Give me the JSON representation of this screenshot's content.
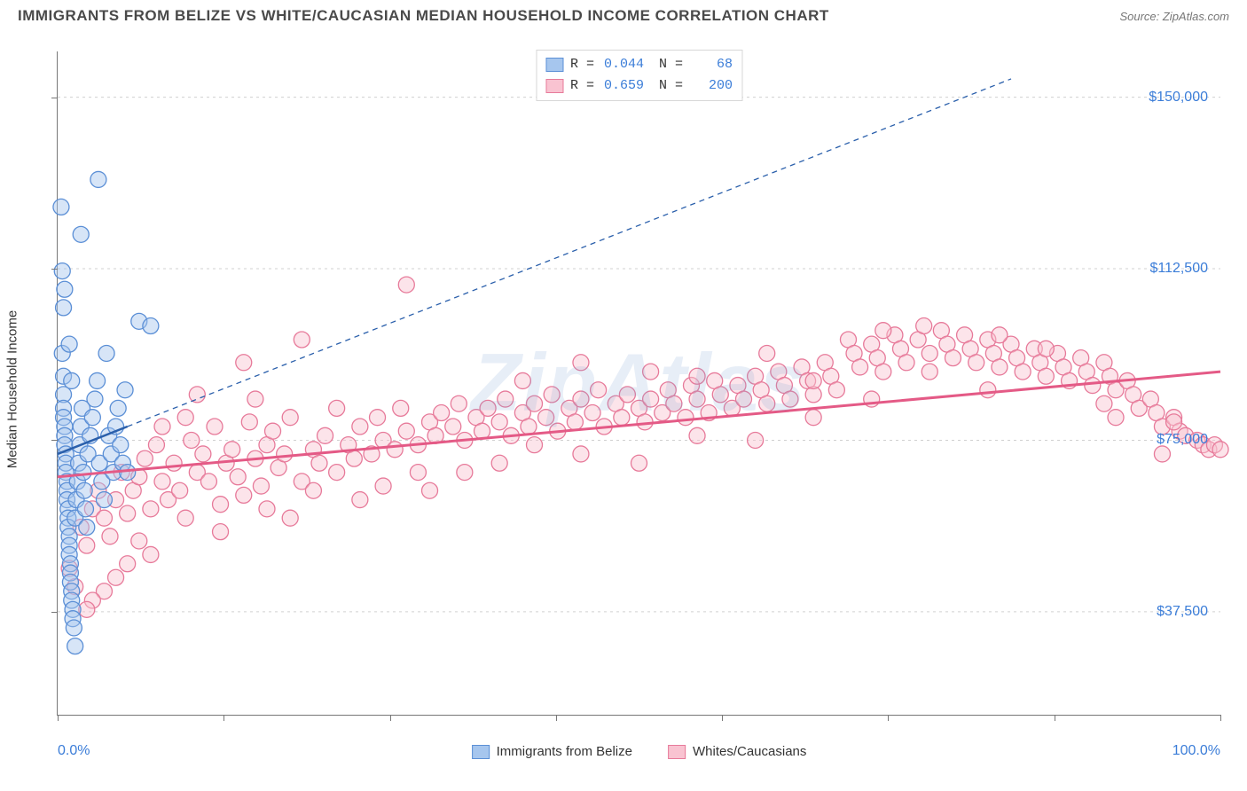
{
  "title": "IMMIGRANTS FROM BELIZE VS WHITE/CAUCASIAN MEDIAN HOUSEHOLD INCOME CORRELATION CHART",
  "source_label": "Source: ZipAtlas.com",
  "watermark": "ZipAtlas",
  "axes": {
    "ylabel": "Median Household Income",
    "y_ticks": [
      {
        "v": 37500,
        "label": "$37,500"
      },
      {
        "v": 75000,
        "label": "$75,000"
      },
      {
        "v": 112500,
        "label": "$112,500"
      },
      {
        "v": 150000,
        "label": "$150,000"
      }
    ],
    "ylim": [
      15000,
      160000
    ],
    "xlim": [
      0,
      100
    ],
    "x_tick_positions": [
      0,
      14.3,
      28.6,
      42.9,
      57.1,
      71.4,
      85.7,
      100
    ],
    "x_tick_labels": [
      {
        "v": 0,
        "label": "0.0%"
      },
      {
        "v": 100,
        "label": "100.0%"
      }
    ]
  },
  "colors": {
    "blue_fill": "#a6c6ee",
    "blue_stroke": "#5b8fd6",
    "blue_line": "#2a5fab",
    "pink_fill": "#f9c3d1",
    "pink_stroke": "#e77a9a",
    "pink_line": "#e45a86",
    "grid": "#d0d0d0",
    "axis": "#777777",
    "tick_label": "#3b7dd8",
    "text": "#333333",
    "bg": "#ffffff"
  },
  "marker": {
    "radius": 9,
    "fill_opacity": 0.45,
    "stroke_width": 1.3
  },
  "legend_top": [
    {
      "swatch": "blue",
      "R": "0.044",
      "N": "68"
    },
    {
      "swatch": "pink",
      "R": "0.659",
      "N": "200"
    }
  ],
  "legend_bottom": [
    {
      "swatch": "blue",
      "label": "Immigrants from Belize"
    },
    {
      "swatch": "pink",
      "label": "Whites/Caucasians"
    }
  ],
  "series": {
    "blue": {
      "trend": {
        "x1": 0,
        "y1": 72000,
        "x2": 6,
        "y2": 78000
      },
      "extrap": {
        "x1": 6,
        "y1": 78000,
        "x2": 82,
        "y2": 154000
      },
      "extrap_dash": "6,5",
      "points": [
        [
          0.3,
          126000
        ],
        [
          0.4,
          94000
        ],
        [
          0.5,
          89000
        ],
        [
          0.5,
          85000
        ],
        [
          0.5,
          82000
        ],
        [
          0.5,
          80000
        ],
        [
          0.6,
          78000
        ],
        [
          0.6,
          76000
        ],
        [
          0.6,
          74000
        ],
        [
          0.7,
          72000
        ],
        [
          0.7,
          70000
        ],
        [
          0.7,
          68000
        ],
        [
          0.8,
          66000
        ],
        [
          0.8,
          64000
        ],
        [
          0.8,
          62000
        ],
        [
          0.9,
          60000
        ],
        [
          0.9,
          58000
        ],
        [
          0.9,
          56000
        ],
        [
          1.0,
          54000
        ],
        [
          1.0,
          52000
        ],
        [
          1.0,
          50000
        ],
        [
          1.1,
          48000
        ],
        [
          1.1,
          46000
        ],
        [
          1.1,
          44000
        ],
        [
          1.2,
          42000
        ],
        [
          1.2,
          40000
        ],
        [
          1.3,
          38000
        ],
        [
          1.3,
          36000
        ],
        [
          1.4,
          34000
        ],
        [
          1.5,
          30000
        ],
        [
          1.5,
          58000
        ],
        [
          1.6,
          62000
        ],
        [
          1.7,
          66000
        ],
        [
          1.8,
          70000
        ],
        [
          1.9,
          74000
        ],
        [
          2.0,
          78000
        ],
        [
          2.1,
          82000
        ],
        [
          2.2,
          68000
        ],
        [
          2.3,
          64000
        ],
        [
          2.4,
          60000
        ],
        [
          2.5,
          56000
        ],
        [
          2.6,
          72000
        ],
        [
          2.8,
          76000
        ],
        [
          3.0,
          80000
        ],
        [
          3.2,
          84000
        ],
        [
          3.4,
          88000
        ],
        [
          3.6,
          70000
        ],
        [
          3.8,
          66000
        ],
        [
          4.0,
          62000
        ],
        [
          4.2,
          94000
        ],
        [
          4.4,
          76000
        ],
        [
          4.6,
          72000
        ],
        [
          4.8,
          68000
        ],
        [
          5.0,
          78000
        ],
        [
          5.2,
          82000
        ],
        [
          5.4,
          74000
        ],
        [
          5.6,
          70000
        ],
        [
          5.8,
          86000
        ],
        [
          6.0,
          68000
        ],
        [
          2.0,
          120000
        ],
        [
          3.5,
          132000
        ],
        [
          7.0,
          101000
        ],
        [
          8.0,
          100000
        ],
        [
          1.0,
          96000
        ],
        [
          1.2,
          88000
        ],
        [
          0.5,
          104000
        ],
        [
          0.6,
          108000
        ],
        [
          0.4,
          112000
        ]
      ]
    },
    "pink": {
      "trend": {
        "x1": 0,
        "y1": 67000,
        "x2": 100,
        "y2": 90000
      },
      "points": [
        [
          1,
          47000
        ],
        [
          1.5,
          43000
        ],
        [
          2,
          56000
        ],
        [
          2.5,
          52000
        ],
        [
          3,
          60000
        ],
        [
          3.5,
          64000
        ],
        [
          4,
          58000
        ],
        [
          4.5,
          54000
        ],
        [
          5,
          62000
        ],
        [
          5,
          45000
        ],
        [
          5.5,
          68000
        ],
        [
          6,
          59000
        ],
        [
          6.5,
          64000
        ],
        [
          7,
          67000
        ],
        [
          7,
          53000
        ],
        [
          7.5,
          71000
        ],
        [
          8,
          60000
        ],
        [
          8.5,
          74000
        ],
        [
          9,
          66000
        ],
        [
          9.5,
          62000
        ],
        [
          10,
          70000
        ],
        [
          10.5,
          64000
        ],
        [
          11,
          58000
        ],
        [
          11.5,
          75000
        ],
        [
          12,
          68000
        ],
        [
          12.5,
          72000
        ],
        [
          13,
          66000
        ],
        [
          13.5,
          78000
        ],
        [
          14,
          61000
        ],
        [
          14.5,
          70000
        ],
        [
          15,
          73000
        ],
        [
          15.5,
          67000
        ],
        [
          16,
          63000
        ],
        [
          16.5,
          79000
        ],
        [
          17,
          71000
        ],
        [
          17.5,
          65000
        ],
        [
          18,
          74000
        ],
        [
          18.5,
          77000
        ],
        [
          19,
          69000
        ],
        [
          19.5,
          72000
        ],
        [
          20,
          80000
        ],
        [
          21,
          97000
        ],
        [
          21,
          66000
        ],
        [
          22,
          73000
        ],
        [
          22.5,
          70000
        ],
        [
          23,
          76000
        ],
        [
          24,
          68000
        ],
        [
          24,
          82000
        ],
        [
          25,
          74000
        ],
        [
          25.5,
          71000
        ],
        [
          26,
          78000
        ],
        [
          27,
          72000
        ],
        [
          27.5,
          80000
        ],
        [
          28,
          75000
        ],
        [
          29,
          73000
        ],
        [
          29.5,
          82000
        ],
        [
          30,
          77000
        ],
        [
          30,
          109000
        ],
        [
          31,
          74000
        ],
        [
          32,
          79000
        ],
        [
          32.5,
          76000
        ],
        [
          33,
          81000
        ],
        [
          34,
          78000
        ],
        [
          34.5,
          83000
        ],
        [
          35,
          75000
        ],
        [
          36,
          80000
        ],
        [
          36.5,
          77000
        ],
        [
          37,
          82000
        ],
        [
          38,
          79000
        ],
        [
          38.5,
          84000
        ],
        [
          39,
          76000
        ],
        [
          40,
          81000
        ],
        [
          40.5,
          78000
        ],
        [
          41,
          83000
        ],
        [
          42,
          80000
        ],
        [
          42.5,
          85000
        ],
        [
          43,
          77000
        ],
        [
          44,
          82000
        ],
        [
          44.5,
          79000
        ],
        [
          45,
          84000
        ],
        [
          46,
          81000
        ],
        [
          46.5,
          86000
        ],
        [
          47,
          78000
        ],
        [
          48,
          83000
        ],
        [
          48.5,
          80000
        ],
        [
          49,
          85000
        ],
        [
          50,
          82000
        ],
        [
          50.5,
          79000
        ],
        [
          51,
          84000
        ],
        [
          52,
          81000
        ],
        [
          52.5,
          86000
        ],
        [
          53,
          83000
        ],
        [
          54,
          80000
        ],
        [
          54.5,
          87000
        ],
        [
          55,
          84000
        ],
        [
          56,
          81000
        ],
        [
          56.5,
          88000
        ],
        [
          57,
          85000
        ],
        [
          58,
          82000
        ],
        [
          58.5,
          87000
        ],
        [
          59,
          84000
        ],
        [
          60,
          89000
        ],
        [
          60.5,
          86000
        ],
        [
          61,
          83000
        ],
        [
          62,
          90000
        ],
        [
          62.5,
          87000
        ],
        [
          63,
          84000
        ],
        [
          64,
          91000
        ],
        [
          64.5,
          88000
        ],
        [
          65,
          85000
        ],
        [
          66,
          92000
        ],
        [
          66.5,
          89000
        ],
        [
          67,
          86000
        ],
        [
          68,
          97000
        ],
        [
          68.5,
          94000
        ],
        [
          69,
          91000
        ],
        [
          70,
          96000
        ],
        [
          70.5,
          93000
        ],
        [
          71,
          90000
        ],
        [
          72,
          98000
        ],
        [
          72.5,
          95000
        ],
        [
          73,
          92000
        ],
        [
          74,
          97000
        ],
        [
          74.5,
          100000
        ],
        [
          75,
          94000
        ],
        [
          76,
          99000
        ],
        [
          76.5,
          96000
        ],
        [
          77,
          93000
        ],
        [
          78,
          98000
        ],
        [
          78.5,
          95000
        ],
        [
          79,
          92000
        ],
        [
          80,
          97000
        ],
        [
          80.5,
          94000
        ],
        [
          81,
          91000
        ],
        [
          82,
          96000
        ],
        [
          82.5,
          93000
        ],
        [
          83,
          90000
        ],
        [
          84,
          95000
        ],
        [
          84.5,
          92000
        ],
        [
          85,
          89000
        ],
        [
          86,
          94000
        ],
        [
          86.5,
          91000
        ],
        [
          87,
          88000
        ],
        [
          88,
          93000
        ],
        [
          88.5,
          90000
        ],
        [
          89,
          87000
        ],
        [
          90,
          92000
        ],
        [
          90.5,
          89000
        ],
        [
          91,
          86000
        ],
        [
          92,
          88000
        ],
        [
          92.5,
          85000
        ],
        [
          93,
          82000
        ],
        [
          94,
          84000
        ],
        [
          94.5,
          81000
        ],
        [
          95,
          78000
        ],
        [
          96,
          80000
        ],
        [
          96.5,
          77000
        ],
        [
          97,
          76000
        ],
        [
          98,
          75000
        ],
        [
          98.5,
          74000
        ],
        [
          99,
          73000
        ],
        [
          99.5,
          74000
        ],
        [
          100,
          73000
        ],
        [
          12,
          85000
        ],
        [
          18,
          60000
        ],
        [
          35,
          68000
        ],
        [
          45,
          72000
        ],
        [
          55,
          76000
        ],
        [
          65,
          80000
        ],
        [
          14,
          55000
        ],
        [
          8,
          50000
        ],
        [
          6,
          48000
        ],
        [
          4,
          42000
        ],
        [
          3,
          40000
        ],
        [
          2.5,
          38000
        ],
        [
          16,
          92000
        ],
        [
          20,
          58000
        ],
        [
          28,
          65000
        ],
        [
          40,
          88000
        ],
        [
          50,
          70000
        ],
        [
          60,
          75000
        ],
        [
          70,
          84000
        ],
        [
          80,
          86000
        ],
        [
          90,
          83000
        ],
        [
          95,
          72000
        ],
        [
          85,
          95000
        ],
        [
          75,
          90000
        ],
        [
          65,
          88000
        ],
        [
          55,
          89000
        ],
        [
          45,
          92000
        ],
        [
          38,
          70000
        ],
        [
          32,
          64000
        ],
        [
          26,
          62000
        ],
        [
          22,
          64000
        ],
        [
          17,
          84000
        ],
        [
          11,
          80000
        ],
        [
          9,
          78000
        ],
        [
          31,
          68000
        ],
        [
          41,
          74000
        ],
        [
          51,
          90000
        ],
        [
          61,
          94000
        ],
        [
          71,
          99000
        ],
        [
          81,
          98000
        ],
        [
          91,
          80000
        ],
        [
          96,
          79000
        ]
      ]
    }
  }
}
